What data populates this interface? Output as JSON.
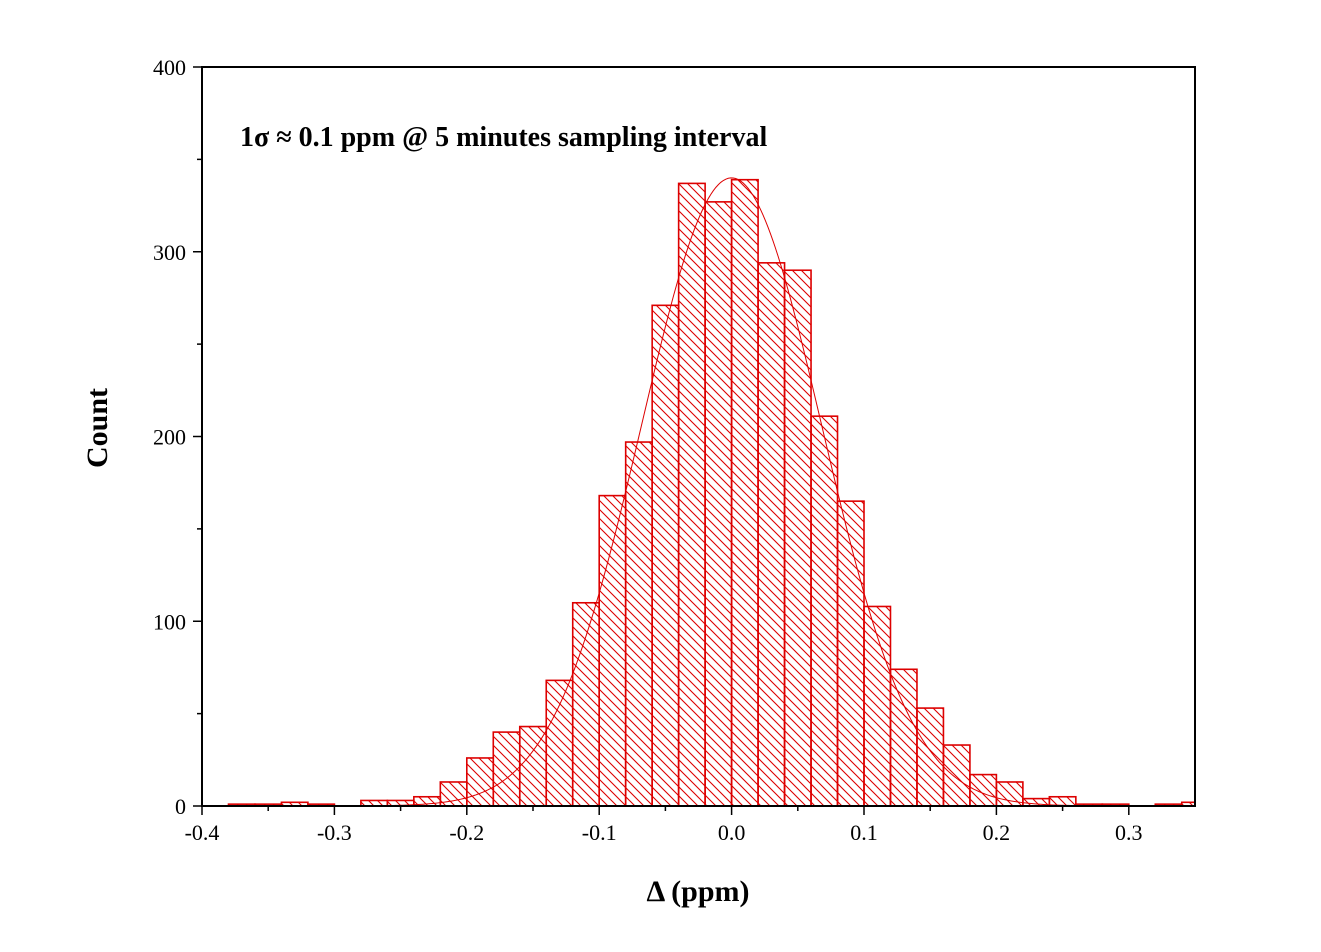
{
  "chart_data": {
    "type": "bar",
    "subtype": "histogram",
    "xlabel": "Δ (ppm)",
    "ylabel": "Count",
    "annotation": "1σ ≈ 0.1  ppm @ 5 minutes sampling interval",
    "xlim": [
      -0.4,
      0.35
    ],
    "ylim": [
      0,
      400
    ],
    "x_ticks": [
      -0.4,
      -0.3,
      -0.2,
      -0.1,
      0.0,
      0.1,
      0.2,
      0.3
    ],
    "x_tick_labels": [
      "-0.4",
      "-0.3",
      "-0.2",
      "-0.1",
      "0.0",
      "0.1",
      "0.2",
      "0.3"
    ],
    "y_ticks": [
      0,
      100,
      200,
      300,
      400
    ],
    "y_tick_labels": [
      "0",
      "100",
      "200",
      "300",
      "400"
    ],
    "bin_width": 0.02,
    "bins": [
      {
        "x0": -0.38,
        "x1": -0.36,
        "count": 1
      },
      {
        "x0": -0.36,
        "x1": -0.34,
        "count": 1
      },
      {
        "x0": -0.34,
        "x1": -0.32,
        "count": 2
      },
      {
        "x0": -0.32,
        "x1": -0.3,
        "count": 1
      },
      {
        "x0": -0.28,
        "x1": -0.26,
        "count": 3
      },
      {
        "x0": -0.26,
        "x1": -0.24,
        "count": 3
      },
      {
        "x0": -0.24,
        "x1": -0.22,
        "count": 5
      },
      {
        "x0": -0.22,
        "x1": -0.2,
        "count": 13
      },
      {
        "x0": -0.2,
        "x1": -0.18,
        "count": 26
      },
      {
        "x0": -0.18,
        "x1": -0.16,
        "count": 40
      },
      {
        "x0": -0.16,
        "x1": -0.14,
        "count": 43
      },
      {
        "x0": -0.14,
        "x1": -0.12,
        "count": 68
      },
      {
        "x0": -0.12,
        "x1": -0.1,
        "count": 110
      },
      {
        "x0": -0.1,
        "x1": -0.08,
        "count": 168
      },
      {
        "x0": -0.08,
        "x1": -0.06,
        "count": 197
      },
      {
        "x0": -0.06,
        "x1": -0.04,
        "count": 271
      },
      {
        "x0": -0.04,
        "x1": -0.02,
        "count": 337
      },
      {
        "x0": -0.02,
        "x1": 0.0,
        "count": 327
      },
      {
        "x0": 0.0,
        "x1": 0.02,
        "count": 339
      },
      {
        "x0": 0.02,
        "x1": 0.04,
        "count": 294
      },
      {
        "x0": 0.04,
        "x1": 0.06,
        "count": 290
      },
      {
        "x0": 0.06,
        "x1": 0.08,
        "count": 211
      },
      {
        "x0": 0.08,
        "x1": 0.1,
        "count": 165
      },
      {
        "x0": 0.1,
        "x1": 0.12,
        "count": 108
      },
      {
        "x0": 0.12,
        "x1": 0.14,
        "count": 74
      },
      {
        "x0": 0.14,
        "x1": 0.16,
        "count": 53
      },
      {
        "x0": 0.16,
        "x1": 0.18,
        "count": 33
      },
      {
        "x0": 0.18,
        "x1": 0.2,
        "count": 17
      },
      {
        "x0": 0.2,
        "x1": 0.22,
        "count": 13
      },
      {
        "x0": 0.22,
        "x1": 0.24,
        "count": 4
      },
      {
        "x0": 0.24,
        "x1": 0.26,
        "count": 5
      },
      {
        "x0": 0.26,
        "x1": 0.28,
        "count": 1
      },
      {
        "x0": 0.28,
        "x1": 0.3,
        "count": 1
      },
      {
        "x0": 0.32,
        "x1": 0.34,
        "count": 1
      },
      {
        "x0": 0.34,
        "x1": 0.36,
        "count": 2
      }
    ],
    "fit_curve": {
      "type": "gaussian",
      "mu": 0.0,
      "sigma": 0.068,
      "amplitude": 340
    },
    "colors": {
      "bars": "#dd0000",
      "fit": "#dd0000",
      "axis": "#000000"
    },
    "bar_fill": "diagonal-hatch",
    "grid": false,
    "legend": "none"
  }
}
